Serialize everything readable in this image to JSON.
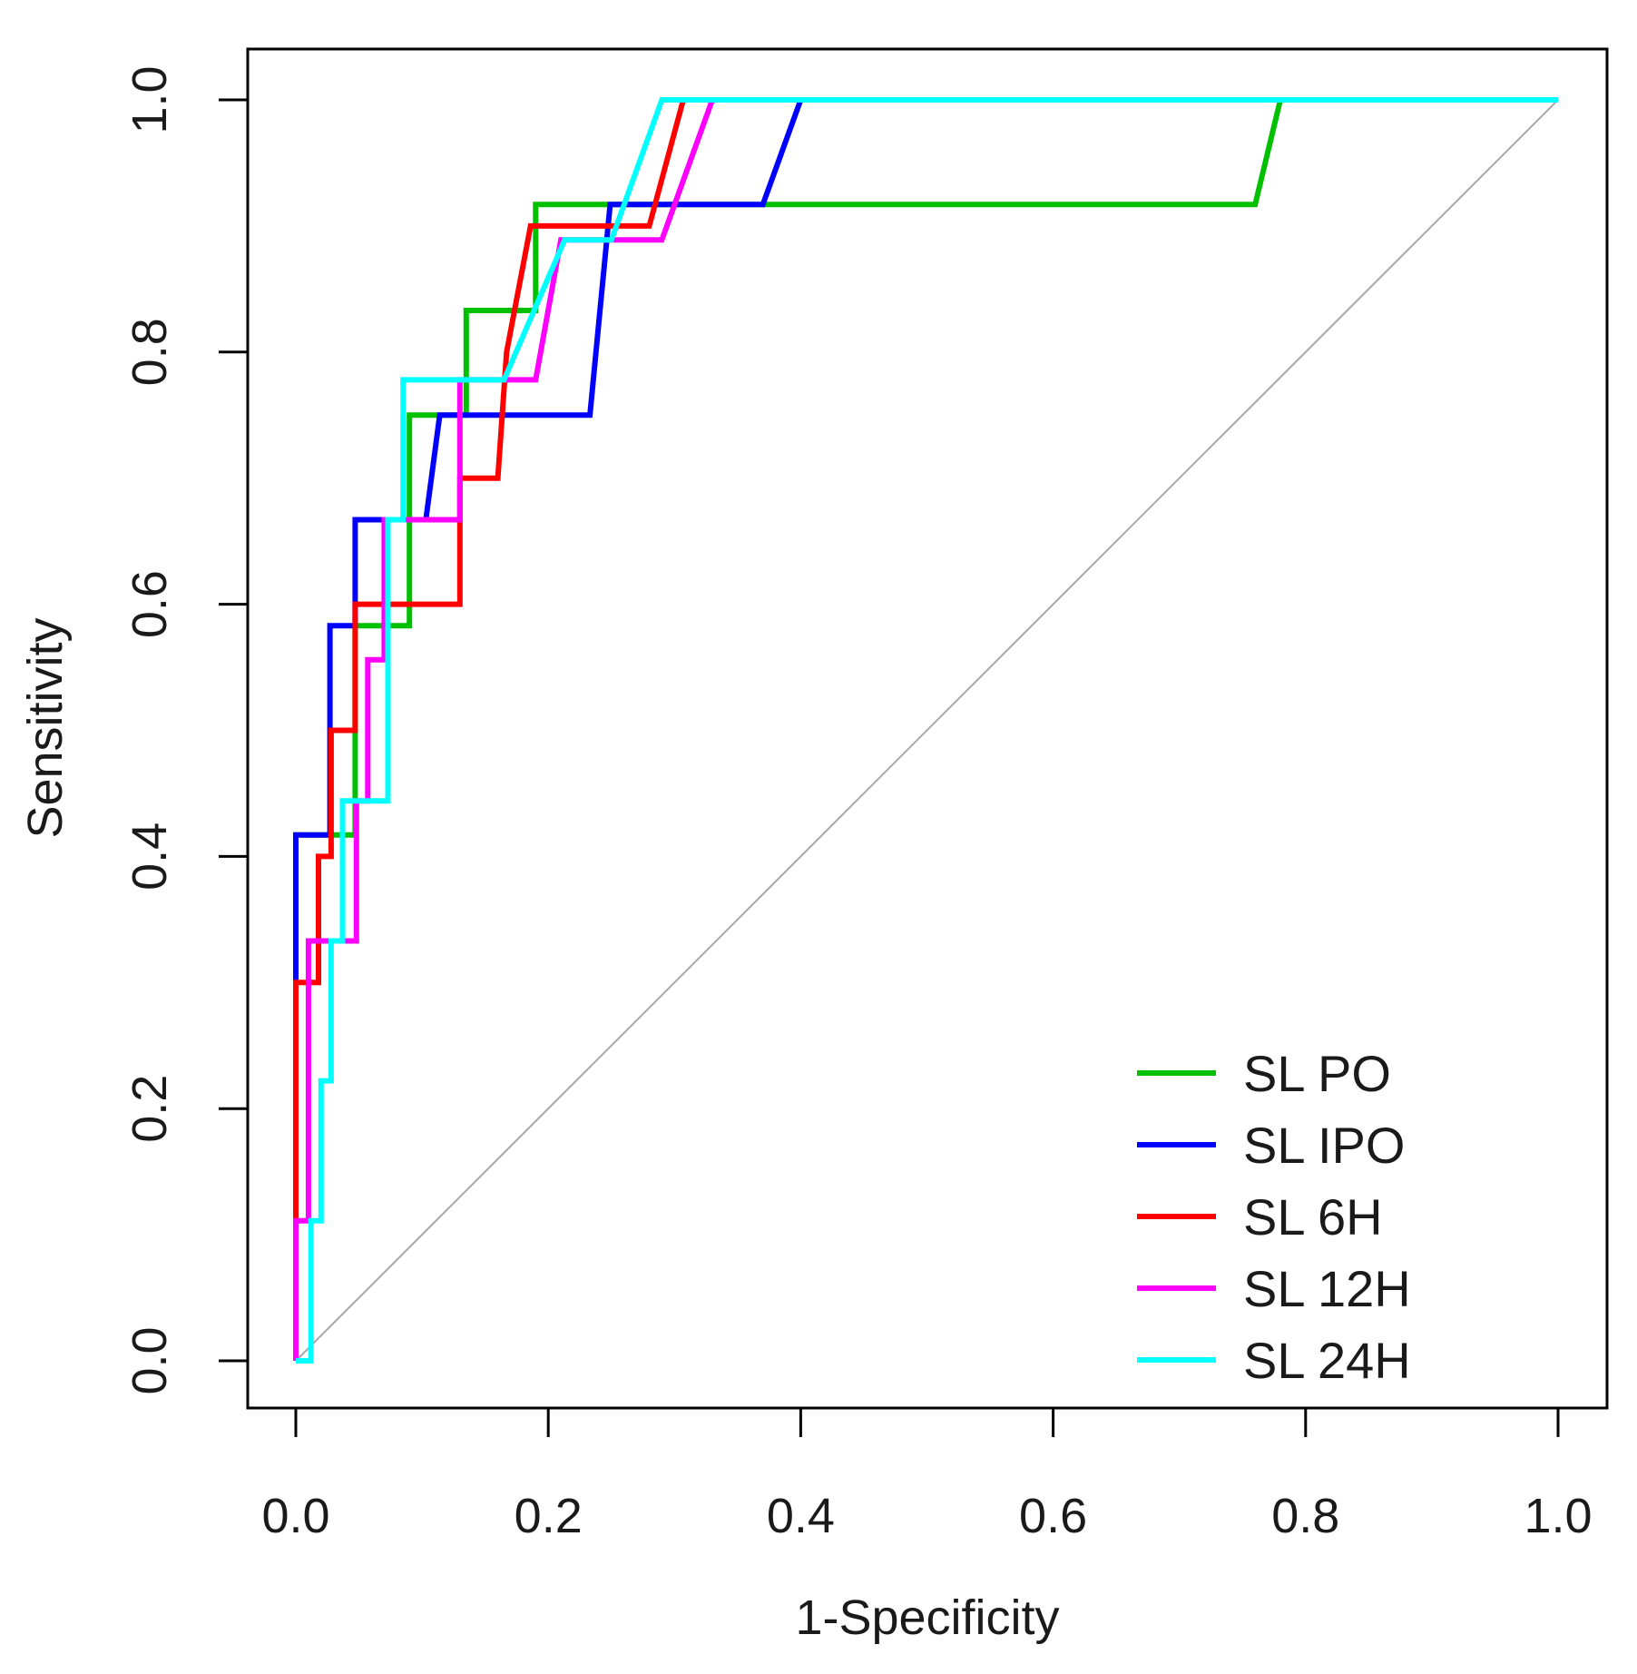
{
  "chart_data": {
    "type": "line",
    "xlabel": "1-Specificity",
    "ylabel": "Sensitivity",
    "xlim": [
      0,
      1
    ],
    "ylim": [
      0,
      1
    ],
    "x_ticks": [
      "0.0",
      "0.2",
      "0.4",
      "0.6",
      "0.8",
      "1.0"
    ],
    "y_ticks": [
      "0.0",
      "0.2",
      "0.4",
      "0.6",
      "0.8",
      "1.0"
    ],
    "grid": false,
    "legend_position": "bottom-right",
    "reference_line": {
      "from": [
        0,
        0
      ],
      "to": [
        1,
        1
      ],
      "color": "#a8a8a8"
    },
    "series": [
      {
        "name": "SL PO",
        "color": "#00c000",
        "points": [
          [
            0,
            0
          ],
          [
            0,
            0.417
          ],
          [
            0.02,
            0.417
          ],
          [
            0.04,
            0.417
          ],
          [
            0.047,
            0.417
          ],
          [
            0.047,
            0.583
          ],
          [
            0.09,
            0.583
          ],
          [
            0.09,
            0.75
          ],
          [
            0.13,
            0.75
          ],
          [
            0.135,
            0.75
          ],
          [
            0.135,
            0.833
          ],
          [
            0.18,
            0.833
          ],
          [
            0.19,
            0.833
          ],
          [
            0.19,
            0.917
          ],
          [
            0.76,
            0.917
          ],
          [
            0.78,
            1.0
          ],
          [
            1,
            1
          ]
        ]
      },
      {
        "name": "SL IPO",
        "color": "#0000ff",
        "points": [
          [
            0,
            0
          ],
          [
            0,
            0.417
          ],
          [
            0.027,
            0.417
          ],
          [
            0.027,
            0.583
          ],
          [
            0.047,
            0.583
          ],
          [
            0.047,
            0.667
          ],
          [
            0.103,
            0.667
          ],
          [
            0.114,
            0.75
          ],
          [
            0.233,
            0.75
          ],
          [
            0.249,
            0.917
          ],
          [
            0.37,
            0.917
          ],
          [
            0.4,
            1.0
          ],
          [
            1,
            1
          ]
        ]
      },
      {
        "name": "SL 6H",
        "color": "#ff0000",
        "points": [
          [
            0,
            0
          ],
          [
            0,
            0.3
          ],
          [
            0.018,
            0.3
          ],
          [
            0.018,
            0.4
          ],
          [
            0.028,
            0.4
          ],
          [
            0.028,
            0.5
          ],
          [
            0.047,
            0.5
          ],
          [
            0.047,
            0.6
          ],
          [
            0.13,
            0.6
          ],
          [
            0.13,
            0.7
          ],
          [
            0.16,
            0.7
          ],
          [
            0.167,
            0.8
          ],
          [
            0.186,
            0.9
          ],
          [
            0.28,
            0.9
          ],
          [
            0.307,
            1.0
          ],
          [
            1,
            1
          ]
        ]
      },
      {
        "name": "SL 12H",
        "color": "#ff00ff",
        "points": [
          [
            0,
            0
          ],
          [
            0,
            0.111
          ],
          [
            0.01,
            0.111
          ],
          [
            0.01,
            0.333
          ],
          [
            0.048,
            0.333
          ],
          [
            0.048,
            0.444
          ],
          [
            0.057,
            0.444
          ],
          [
            0.057,
            0.556
          ],
          [
            0.07,
            0.556
          ],
          [
            0.07,
            0.667
          ],
          [
            0.13,
            0.667
          ],
          [
            0.13,
            0.778
          ],
          [
            0.19,
            0.778
          ],
          [
            0.21,
            0.889
          ],
          [
            0.29,
            0.889
          ],
          [
            0.33,
            1.0
          ],
          [
            1,
            1
          ]
        ]
      },
      {
        "name": "SL 24H",
        "color": "#00ffff",
        "points": [
          [
            0,
            0
          ],
          [
            0.012,
            0
          ],
          [
            0.012,
            0.111
          ],
          [
            0.02,
            0.111
          ],
          [
            0.02,
            0.222
          ],
          [
            0.028,
            0.222
          ],
          [
            0.028,
            0.333
          ],
          [
            0.037,
            0.333
          ],
          [
            0.037,
            0.444
          ],
          [
            0.073,
            0.444
          ],
          [
            0.073,
            0.667
          ],
          [
            0.085,
            0.667
          ],
          [
            0.085,
            0.778
          ],
          [
            0.165,
            0.778
          ],
          [
            0.213,
            0.889
          ],
          [
            0.25,
            0.889
          ],
          [
            0.29,
            1.0
          ],
          [
            1,
            1
          ]
        ]
      }
    ]
  }
}
